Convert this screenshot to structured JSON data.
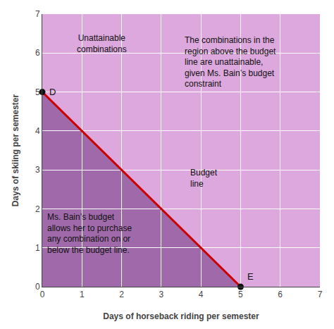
{
  "chart_data": {
    "type": "line",
    "xlabel": "Days of horseback riding per semester",
    "ylabel": "Days of skiing per semester",
    "xlim": [
      0,
      7
    ],
    "ylim": [
      0,
      7
    ],
    "xticks": [
      0,
      1,
      2,
      3,
      4,
      5,
      6,
      7
    ],
    "yticks": [
      0,
      1,
      2,
      3,
      4,
      5,
      6,
      7
    ],
    "grid": true,
    "series": [
      {
        "type": "area",
        "color": "#dda8dd",
        "x": [
          0,
          7
        ],
        "values": [
          7,
          7
        ]
      },
      {
        "type": "area",
        "color": "#a06aaa",
        "x": [
          0,
          5
        ],
        "values": [
          5,
          0
        ]
      },
      {
        "type": "line",
        "color": "#cc0000",
        "x": [
          0,
          5
        ],
        "values": [
          5,
          0
        ]
      },
      {
        "type": "scatter",
        "marker": "circle",
        "color": "#111111",
        "x": [
          0,
          5
        ],
        "values": [
          5,
          0
        ]
      }
    ],
    "annotations": [
      {
        "text": "D",
        "x": 0,
        "y": 5
      },
      {
        "text": "E",
        "x": 5,
        "y": 0
      },
      {
        "text": "Unattainable\ncombinations",
        "x": 1.5,
        "y": 6.55
      },
      {
        "text": "The combinations in the\nregion above the budget\nline are unattainable,\ngiven Ms. Bain’s budget\nconstraint",
        "x": 3.55,
        "y": 6.5
      },
      {
        "text": "Budget\nline",
        "x": 3.7,
        "y": 3.1
      },
      {
        "text": "Ms. Bain’s budget\nallows her to purchase\nany combination on or\nbelow the budget line.",
        "x": 0.08,
        "y": 1.95
      }
    ]
  }
}
